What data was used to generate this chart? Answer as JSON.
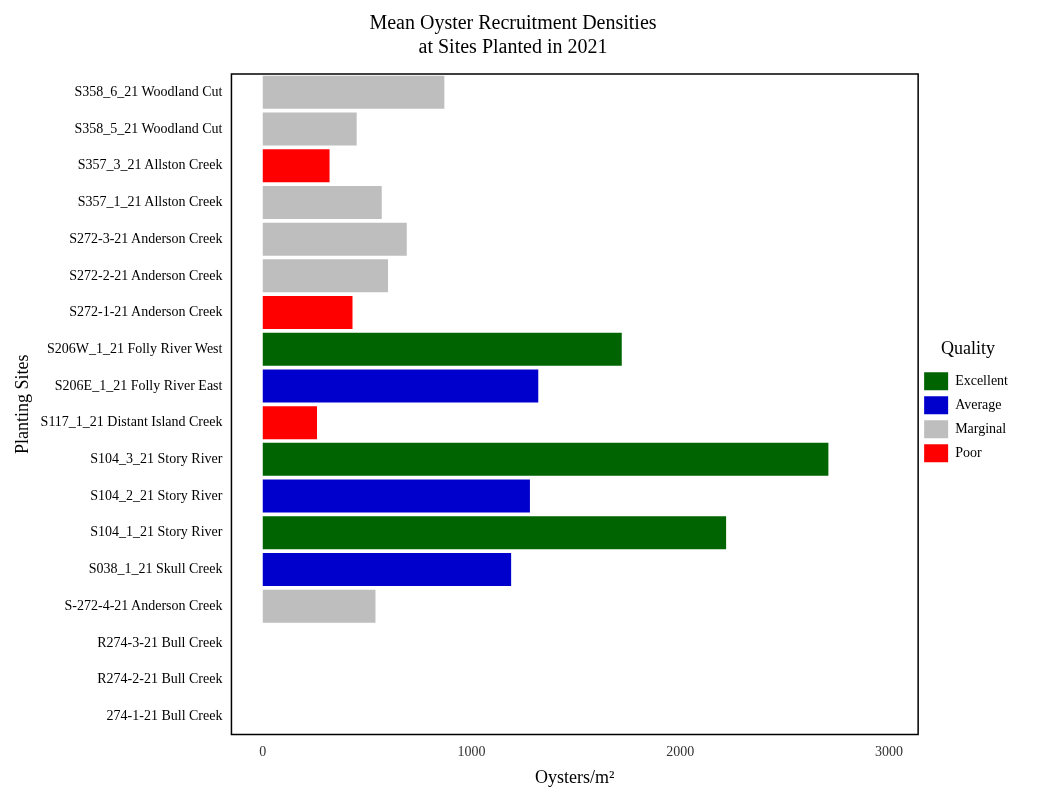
{
  "chart_data": {
    "type": "bar",
    "title": [
      "Mean Oyster Recruitment Densities",
      "at Sites Planted in 2021"
    ],
    "xlabel": "Oysters/m²",
    "ylabel": "Planting Sites",
    "legend_title": "Quality",
    "orientation": "horizontal",
    "stacked": true,
    "legend": "right",
    "grid": false,
    "categories": [
      "S358_6_21 Woodland Cut",
      "S358_5_21 Woodland Cut",
      "S357_3_21 Allston Creek",
      "S357_1_21 Allston Creek",
      "S272-3-21 Anderson Creek",
      "S272-2-21 Anderson Creek",
      "S272-1-21 Anderson Creek",
      "S206W_1_21 Folly River West",
      "S206E_1_21 Folly River East",
      "S117_1_21 Distant Island Creek",
      "S104_3_21 Story River",
      "S104_2_21 Story River",
      "S104_1_21 Story River",
      "S038_1_21 Skull Creek",
      "S-272-4-21 Anderson Creek",
      "R274-3-21 Bull Creek",
      "R274-2-21 Bull Creek",
      "274-1-21 Bull Creek"
    ],
    "series": [
      {
        "name": "Excellent",
        "color": "#006400",
        "values": [
          null,
          null,
          null,
          null,
          null,
          null,
          null,
          1720,
          null,
          null,
          2710,
          null,
          2220,
          null,
          null,
          null,
          null,
          null
        ]
      },
      {
        "name": "Average",
        "color": "#0000cd",
        "values": [
          null,
          null,
          null,
          null,
          null,
          null,
          null,
          null,
          1320,
          null,
          null,
          1280,
          null,
          1190,
          null,
          null,
          null,
          null
        ]
      },
      {
        "name": "Marginal",
        "color": "#bebebe",
        "values": [
          870,
          450,
          null,
          570,
          690,
          600,
          null,
          null,
          null,
          null,
          null,
          null,
          null,
          null,
          540,
          null,
          null,
          null
        ]
      },
      {
        "name": "Poor",
        "color": "#ff0000",
        "values": [
          null,
          null,
          320,
          null,
          null,
          null,
          430,
          null,
          null,
          260,
          null,
          null,
          null,
          null,
          null,
          null,
          null,
          null
        ]
      }
    ],
    "xlim": [
      -150,
      3140
    ],
    "xticks": [
      0,
      1000,
      2000,
      3000
    ]
  }
}
